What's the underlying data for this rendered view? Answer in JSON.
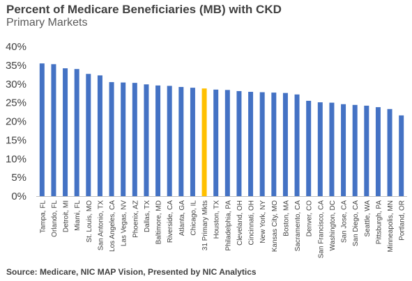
{
  "title": "Percent of Medicare Beneficiaries (MB) with CKD",
  "subtitle": "Primary Markets",
  "source": "Source: Medicare, NIC MAP Vision, Presented by NIC Analytics",
  "colors": {
    "bar": "#4472C4",
    "highlight": "#FFC000",
    "axis": "#BFBFBF",
    "text": "#404040"
  },
  "chart_data": {
    "type": "bar",
    "ylim": [
      0,
      40
    ],
    "yticks": [
      "0%",
      "5%",
      "10%",
      "15%",
      "20%",
      "25%",
      "30%",
      "35%",
      "40%"
    ],
    "grid": false,
    "highlight_category": "31 Primary Mkts",
    "categories": [
      "Tampa, FL",
      "Orlando, FL",
      "Detroit, MI",
      "Miami, FL",
      "St. Louis, MO",
      "San Antonio, TX",
      "Los Angeles, CA",
      "Las Vegas, NV",
      "Phoenix, AZ",
      "Dallas, TX",
      "Baltimore, MD",
      "Riverside, CA",
      "Atlanta, GA",
      "Chicago, IL",
      "31 Primary Mkts",
      "Houston, TX",
      "Philadelphia, PA",
      "Cleveland, OH",
      "Cincinnati, OH",
      "New York, NY",
      "Kansas City, MO",
      "Boston, MA",
      "Sacramento, CA",
      "Denver, CO",
      "San Francisco, CA",
      "Washington, DC",
      "San Jose, CA",
      "San Diego, CA",
      "Seattle, WA",
      "Pittsburgh, PA",
      "Minneapolis, MN",
      "Portland, OR"
    ],
    "values": [
      35.5,
      35.3,
      34.2,
      34.0,
      32.7,
      32.3,
      30.5,
      30.4,
      30.3,
      29.9,
      29.6,
      29.5,
      29.2,
      29.0,
      28.8,
      28.5,
      28.4,
      28.1,
      27.9,
      27.8,
      27.7,
      27.6,
      27.2,
      25.5,
      25.1,
      25.0,
      24.6,
      24.4,
      24.2,
      23.8,
      23.3,
      21.6
    ]
  }
}
